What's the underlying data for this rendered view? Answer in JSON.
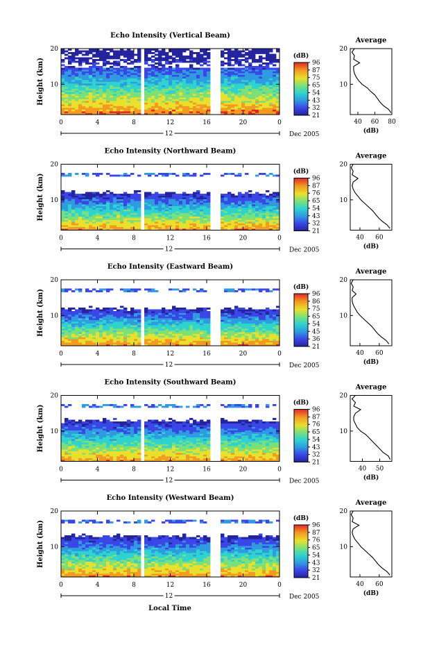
{
  "figure": {
    "xlabel": "Local Time"
  },
  "chart_data": [
    {
      "type": "heatmap",
      "title": "Echo Intensity (Vertical Beam)",
      "ylabel": "Height (km)",
      "ylim": [
        1.5,
        20
      ],
      "xlim": [
        0,
        24
      ],
      "x_ticks": [
        "0",
        "4",
        "8",
        "12",
        "16",
        "20",
        "0"
      ],
      "y_ticks": [
        "20",
        "10"
      ],
      "date_label": "12",
      "month_label": "Dec 2005",
      "colorbar": {
        "unit": "(dB)",
        "levels": [
          "96",
          "87",
          "75",
          "65",
          "54",
          "43",
          "32",
          "21"
        ]
      },
      "data_gaps": [
        [
          8.8,
          9.2
        ],
        [
          16.5,
          17.6
        ]
      ],
      "cloud_top_km": 20,
      "average_profile": {
        "title": "Average",
        "xlabel": "(dB)",
        "x_ticks": [
          "40",
          "60",
          "80"
        ],
        "xlim": [
          31,
          80
        ],
        "ylim": [
          1.5,
          20
        ],
        "height_km": [
          2,
          3,
          4,
          5,
          6,
          7,
          8,
          9,
          10,
          11,
          12,
          13,
          14,
          15,
          16,
          17,
          18,
          19,
          20
        ],
        "db": [
          79,
          76,
          70,
          66,
          63,
          60,
          55,
          51,
          45,
          41,
          38,
          36,
          35,
          35,
          42,
          35,
          36,
          33,
          36
        ]
      }
    },
    {
      "type": "heatmap",
      "title": "Echo Intensity (Northward Beam)",
      "ylabel": "Height (km)",
      "ylim": [
        1.5,
        20
      ],
      "xlim": [
        0,
        24
      ],
      "x_ticks": [
        "0",
        "4",
        "8",
        "12",
        "16",
        "20",
        "0"
      ],
      "y_ticks": [
        "20",
        "10"
      ],
      "date_label": "12",
      "month_label": "Dec 2005",
      "colorbar": {
        "unit": "(dB)",
        "levels": [
          "96",
          "87",
          "76",
          "65",
          "54",
          "43",
          "32",
          "21"
        ]
      },
      "data_gaps": [
        [
          8.8,
          9.2
        ],
        [
          16.5,
          17.6
        ]
      ],
      "cloud_top_km": 12,
      "average_profile": {
        "title": "Average",
        "xlabel": "(dB)",
        "x_ticks": [
          "40",
          "60"
        ],
        "xlim": [
          30,
          73
        ],
        "ylim": [
          1.5,
          20
        ],
        "height_km": [
          2,
          3,
          4,
          5,
          6,
          7,
          8,
          9,
          10,
          11,
          12,
          13,
          14,
          15,
          16,
          17,
          18,
          19,
          20
        ],
        "db": [
          71,
          68,
          63,
          59,
          56,
          53,
          49,
          45,
          41,
          38,
          35,
          33,
          32,
          33,
          38,
          32,
          33,
          31,
          33
        ]
      }
    },
    {
      "type": "heatmap",
      "title": "Echo Intensity (Eastward Beam)",
      "ylabel": "Height (km)",
      "ylim": [
        1.5,
        20
      ],
      "xlim": [
        0,
        24
      ],
      "x_ticks": [
        "0",
        "4",
        "8",
        "12",
        "16",
        "20",
        "0"
      ],
      "y_ticks": [
        "20",
        "10"
      ],
      "date_label": "12",
      "month_label": "Dec 2005",
      "colorbar": {
        "unit": "(dB)",
        "levels": [
          "96",
          "86",
          "75",
          "65",
          "54",
          "45",
          "36",
          "21"
        ]
      },
      "data_gaps": [
        [
          8.8,
          9.2
        ],
        [
          16.5,
          17.6
        ]
      ],
      "cloud_top_km": 12,
      "average_profile": {
        "title": "Average",
        "xlabel": "(dB)",
        "x_ticks": [
          "40",
          "60"
        ],
        "xlim": [
          30,
          73
        ],
        "ylim": [
          1.5,
          20
        ],
        "height_km": [
          2,
          3,
          4,
          5,
          6,
          7,
          8,
          9,
          10,
          11,
          12,
          13,
          14,
          15,
          16,
          17,
          18,
          19,
          20
        ],
        "db": [
          70,
          67,
          62,
          58,
          55,
          52,
          48,
          44,
          40,
          37,
          35,
          33,
          32,
          32,
          36,
          32,
          33,
          31,
          33
        ]
      }
    },
    {
      "type": "heatmap",
      "title": "Echo Intensity (Southward Beam)",
      "ylabel": "Height (km)",
      "ylim": [
        1.5,
        20
      ],
      "xlim": [
        0,
        24
      ],
      "x_ticks": [
        "0",
        "4",
        "8",
        "12",
        "16",
        "20",
        "0"
      ],
      "y_ticks": [
        "20",
        "10"
      ],
      "date_label": "12",
      "month_label": "Dec 2005",
      "colorbar": {
        "unit": "(dB)",
        "levels": [
          "96",
          "87",
          "76",
          "65",
          "54",
          "43",
          "32",
          "21"
        ]
      },
      "data_gaps": [
        [
          8.8,
          9.2
        ],
        [
          16.5,
          17.6
        ]
      ],
      "cloud_top_km": 13,
      "average_profile": {
        "title": "Average",
        "xlabel": "(dB)",
        "x_ticks": [
          "40",
          "50"
        ],
        "xlim": [
          33,
          57
        ],
        "ylim": [
          1.5,
          20
        ],
        "height_km": [
          2,
          3,
          4,
          5,
          6,
          7,
          8,
          9,
          10,
          11,
          12,
          13,
          14,
          15,
          16,
          17,
          18,
          19,
          20
        ],
        "db": [
          56,
          55,
          52,
          50,
          48,
          46,
          44,
          42,
          39,
          37,
          36,
          35,
          35,
          36,
          39,
          35,
          36,
          34,
          36
        ]
      }
    },
    {
      "type": "heatmap",
      "title": "Echo Intensity (Westward Beam)",
      "ylabel": "Height (km)",
      "ylim": [
        1.5,
        20
      ],
      "xlim": [
        0,
        24
      ],
      "x_ticks": [
        "0",
        "4",
        "8",
        "12",
        "16",
        "20",
        "0"
      ],
      "y_ticks": [
        "20",
        "10"
      ],
      "date_label": "12",
      "month_label": "Dec 2005",
      "colorbar": {
        "unit": "(dB)",
        "levels": [
          "96",
          "87",
          "76",
          "65",
          "54",
          "43",
          "32",
          "21"
        ]
      },
      "data_gaps": [
        [
          8.8,
          9.2
        ],
        [
          16.5,
          17.6
        ]
      ],
      "cloud_top_km": 13,
      "average_profile": {
        "title": "Average",
        "xlabel": "(dB)",
        "x_ticks": [
          "40",
          "60"
        ],
        "xlim": [
          30,
          73
        ],
        "ylim": [
          1.5,
          20
        ],
        "height_km": [
          2,
          3,
          4,
          5,
          6,
          7,
          8,
          9,
          10,
          11,
          12,
          13,
          14,
          15,
          16,
          17,
          18,
          19,
          20
        ],
        "db": [
          71,
          68,
          63,
          59,
          56,
          53,
          49,
          45,
          41,
          38,
          35,
          33,
          32,
          33,
          39,
          32,
          33,
          31,
          33
        ]
      }
    }
  ]
}
